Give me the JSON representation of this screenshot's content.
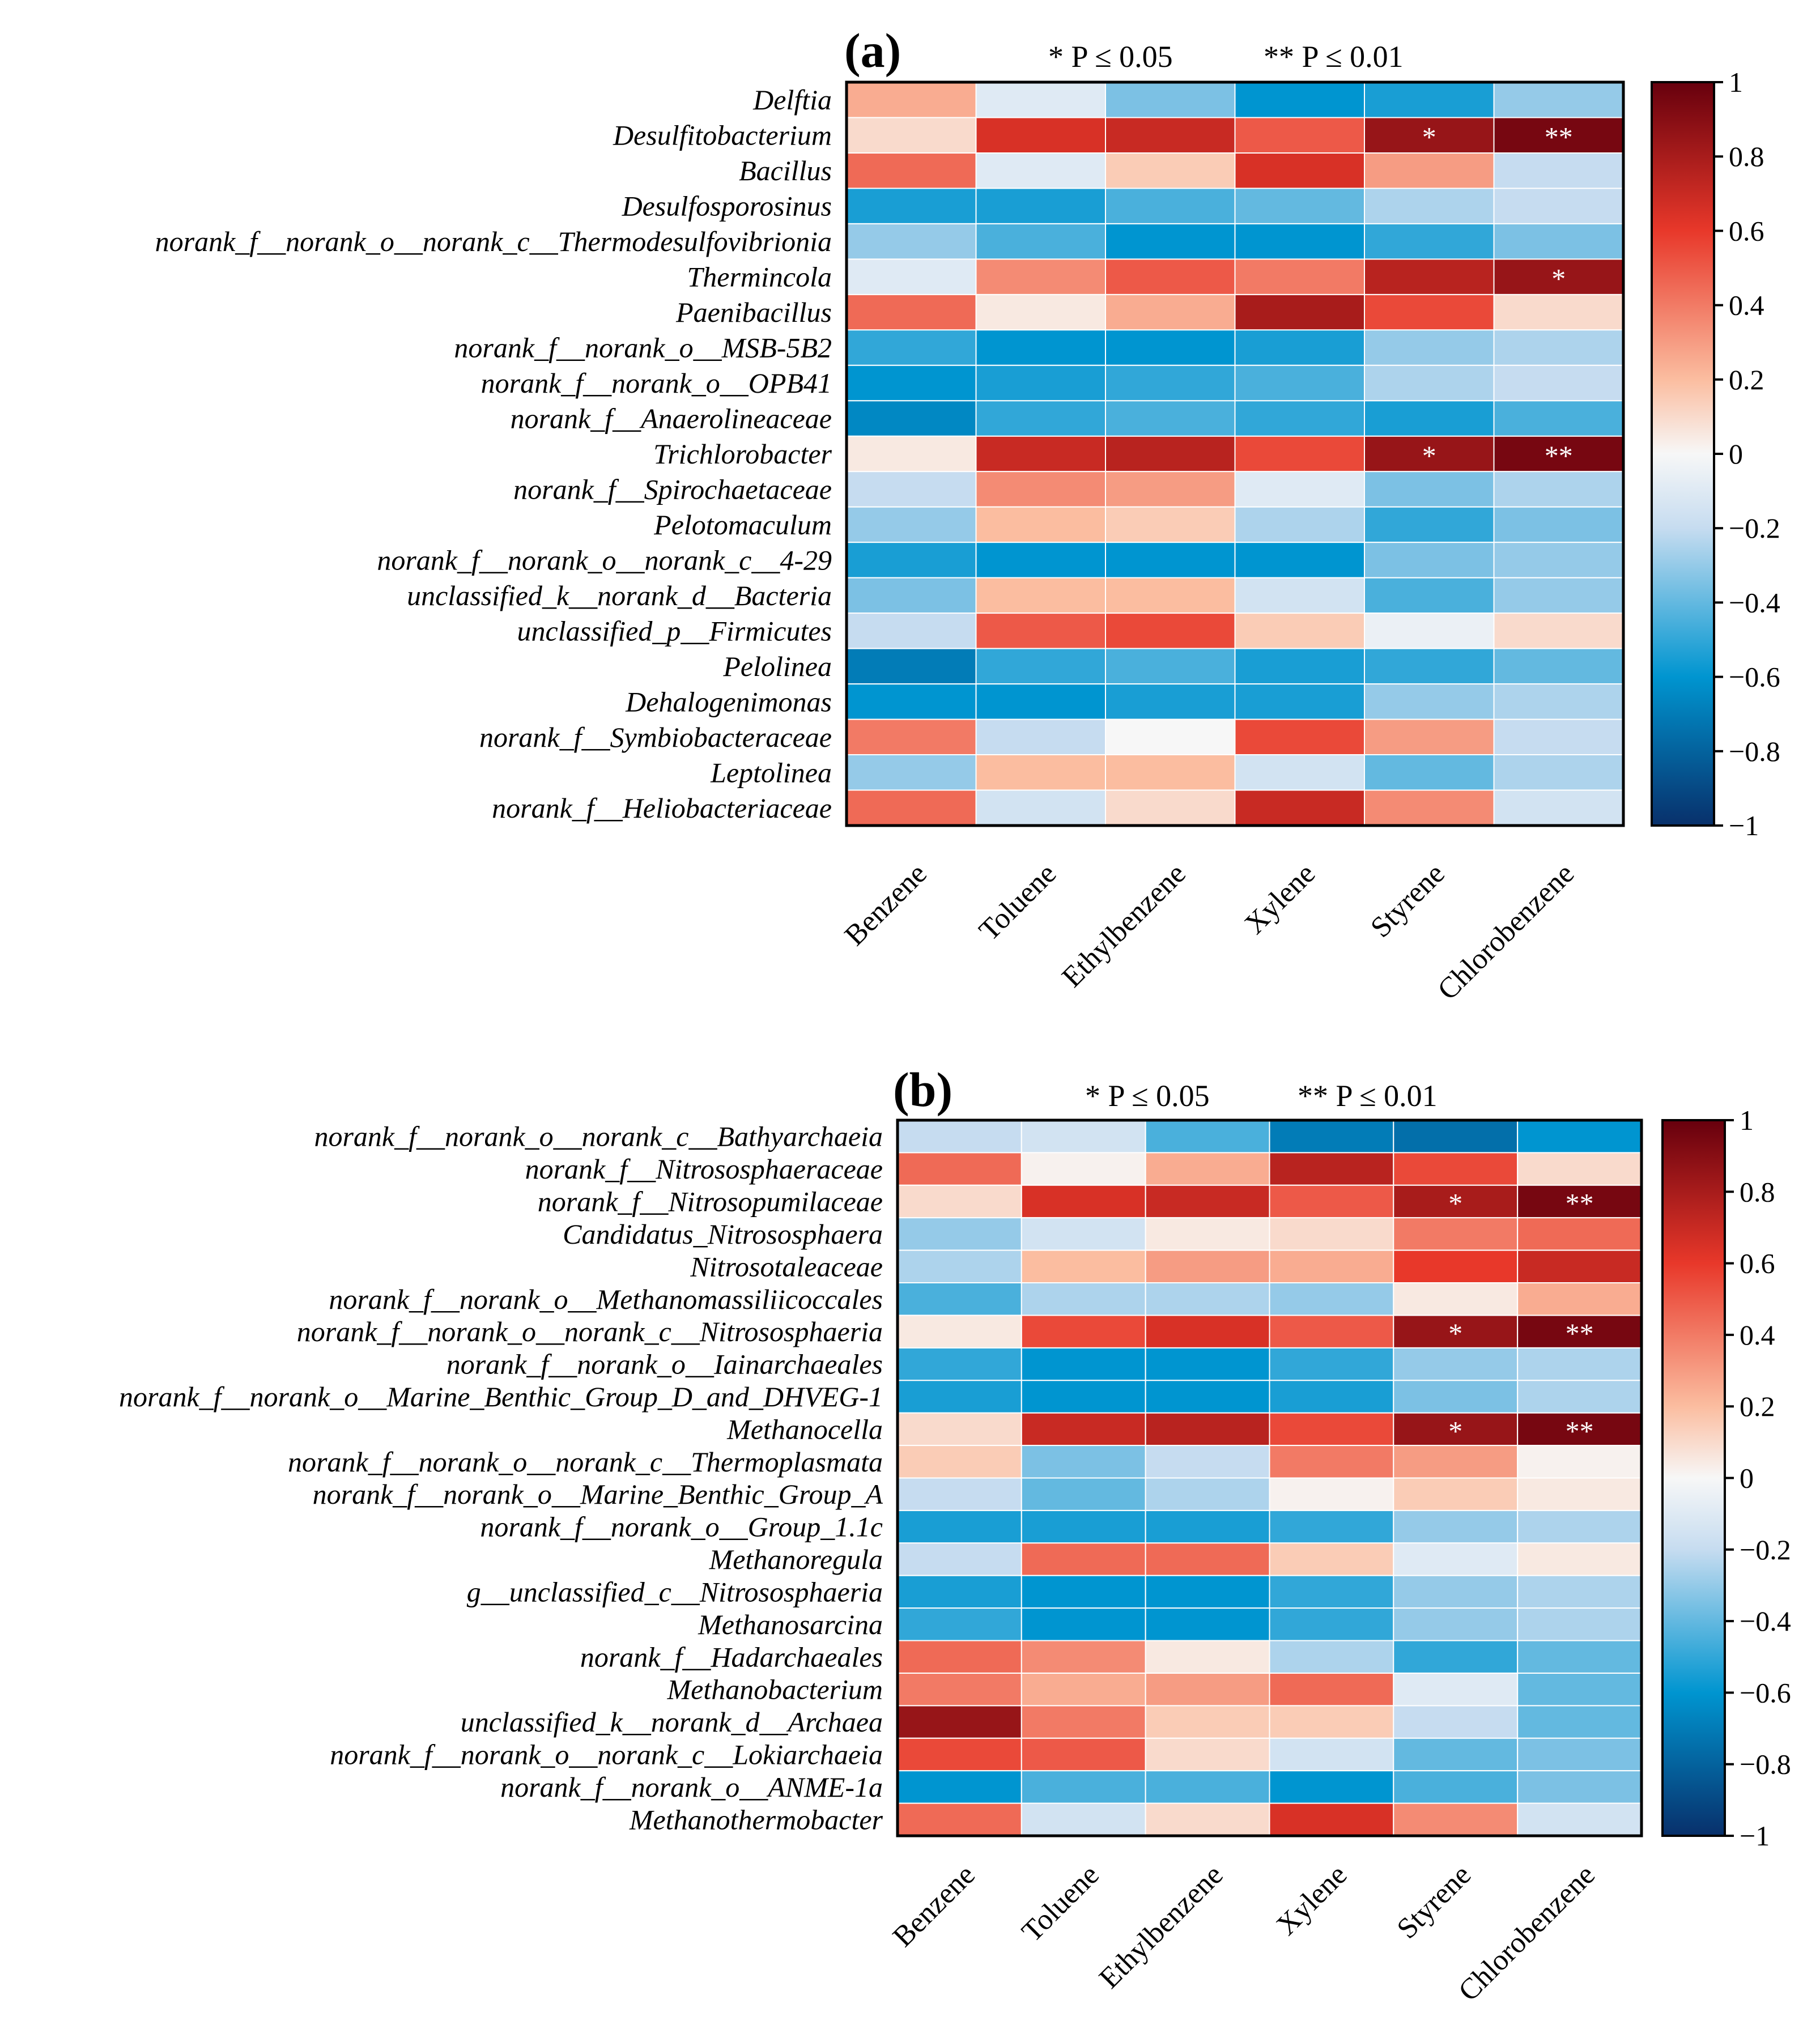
{
  "colors": {
    "scale_neg1": "#08306b",
    "scale_neg06": "#0095d0",
    "scale_neg02": "#c6dcf0",
    "scale_0": "#f7f7f7",
    "scale_pos02": "#fbbda0",
    "scale_pos06": "#e8382a",
    "scale_pos1": "#67000d"
  },
  "chart_data": [
    {
      "type": "heatmap",
      "panel_label": "(a)",
      "significance_legend": [
        "* P ≤ 0.05",
        "** P ≤ 0.01"
      ],
      "columns": [
        "Benzene",
        "Toluene",
        "Ethylbenzene",
        "Xylene",
        "Styrene",
        "Chlorobenzene"
      ],
      "rows": [
        "Delftia",
        "Desulfitobacterium",
        "Bacillus",
        "Desulfosporosinus",
        "norank_f__norank_o__norank_c__Thermodesulfovibrionia",
        "Thermincola",
        "Paenibacillus",
        "norank_f__norank_o__MSB-5B2",
        "norank_f__norank_o__OPB41",
        "norank_f__Anaerolineaceae",
        "Trichlorobacter",
        "norank_f__Spirochaetaceae",
        "Pelotomaculum",
        "norank_f__norank_o__norank_c__4-29",
        "unclassified_k__norank_d__Bacteria",
        "unclassified_p__Firmicutes",
        "Pelolinea",
        "Dehalogenimonas",
        "norank_f__Symbiobacteraceae",
        "Leptolinea",
        "norank_f__Heliobacteriaceae"
      ],
      "values": [
        [
          0.25,
          -0.1,
          -0.35,
          -0.6,
          -0.55,
          -0.3
        ],
        [
          0.1,
          0.65,
          0.7,
          0.5,
          0.85,
          0.95
        ],
        [
          0.45,
          -0.1,
          0.15,
          0.65,
          0.3,
          -0.2
        ],
        [
          -0.55,
          -0.55,
          -0.45,
          -0.4,
          -0.25,
          -0.2
        ],
        [
          -0.3,
          -0.45,
          -0.6,
          -0.6,
          -0.5,
          -0.35
        ],
        [
          -0.1,
          0.35,
          0.5,
          0.4,
          0.75,
          0.85
        ],
        [
          0.45,
          0.05,
          0.25,
          0.8,
          0.55,
          0.1
        ],
        [
          -0.5,
          -0.6,
          -0.6,
          -0.55,
          -0.3,
          -0.25
        ],
        [
          -0.6,
          -0.55,
          -0.5,
          -0.45,
          -0.25,
          -0.2
        ],
        [
          -0.65,
          -0.5,
          -0.45,
          -0.5,
          -0.55,
          -0.45
        ],
        [
          0.05,
          0.7,
          0.75,
          0.55,
          0.85,
          0.95
        ],
        [
          -0.2,
          0.35,
          0.3,
          -0.1,
          -0.35,
          -0.25
        ],
        [
          -0.3,
          0.2,
          0.15,
          -0.25,
          -0.5,
          -0.35
        ],
        [
          -0.55,
          -0.6,
          -0.6,
          -0.6,
          -0.35,
          -0.3
        ],
        [
          -0.35,
          0.2,
          0.2,
          -0.15,
          -0.45,
          -0.3
        ],
        [
          -0.2,
          0.5,
          0.55,
          0.15,
          -0.05,
          0.1
        ],
        [
          -0.7,
          -0.5,
          -0.45,
          -0.55,
          -0.5,
          -0.4
        ],
        [
          -0.6,
          -0.6,
          -0.55,
          -0.55,
          -0.3,
          -0.25
        ],
        [
          0.4,
          -0.2,
          0.0,
          0.55,
          0.3,
          -0.2
        ],
        [
          -0.3,
          0.2,
          0.2,
          -0.15,
          -0.4,
          -0.25
        ],
        [
          0.45,
          -0.15,
          0.1,
          0.7,
          0.35,
          -0.15
        ]
      ],
      "significance": [
        [
          "",
          "",
          "",
          "",
          "",
          ""
        ],
        [
          "",
          "",
          "",
          "",
          "*",
          "**"
        ],
        [
          "",
          "",
          "",
          "",
          "",
          ""
        ],
        [
          "",
          "",
          "",
          "",
          "",
          ""
        ],
        [
          "",
          "",
          "",
          "",
          "",
          ""
        ],
        [
          "",
          "",
          "",
          "",
          "",
          "*"
        ],
        [
          "",
          "",
          "",
          "",
          "",
          ""
        ],
        [
          "",
          "",
          "",
          "",
          "",
          ""
        ],
        [
          "",
          "",
          "",
          "",
          "",
          ""
        ],
        [
          "",
          "",
          "",
          "",
          "",
          ""
        ],
        [
          "",
          "",
          "",
          "",
          "*",
          "**"
        ],
        [
          "",
          "",
          "",
          "",
          "",
          ""
        ],
        [
          "",
          "",
          "",
          "",
          "",
          ""
        ],
        [
          "",
          "",
          "",
          "",
          "",
          ""
        ],
        [
          "",
          "",
          "",
          "",
          "",
          ""
        ],
        [
          "",
          "",
          "",
          "",
          "",
          ""
        ],
        [
          "",
          "",
          "",
          "",
          "",
          ""
        ],
        [
          "",
          "",
          "",
          "",
          "",
          ""
        ],
        [
          "",
          "",
          "",
          "",
          "",
          ""
        ],
        [
          "",
          "",
          "",
          "",
          "",
          ""
        ],
        [
          "",
          "",
          "",
          "",
          "",
          ""
        ]
      ],
      "colorbar_ticks": [
        "1",
        "0.8",
        "0.6",
        "0.4",
        "0.2",
        "0",
        "−0.2",
        "−0.4",
        "−0.6",
        "−0.8",
        "−1"
      ],
      "vlim": [
        -1,
        1
      ]
    },
    {
      "type": "heatmap",
      "panel_label": "(b)",
      "significance_legend": [
        "* P ≤ 0.05",
        "** P ≤ 0.01"
      ],
      "columns": [
        "Benzene",
        "Toluene",
        "Ethylbenzene",
        "Xylene",
        "Styrene",
        "Chlorobenzene"
      ],
      "rows": [
        "norank_f__norank_o__norank_c__Bathyarchaeia",
        "norank_f__Nitrososphaeraceae",
        "norank_f__Nitrosopumilaceae",
        "Candidatus_Nitrososphaera",
        "Nitrosotaleaceae",
        "norank_f__norank_o__Methanomassiliicoccales",
        "norank_f__norank_o__norank_c__Nitrososphaeria",
        "norank_f__norank_o__Iainarchaeales",
        "norank_f__norank_o__Marine_Benthic_Group_D_and_DHVEG-1",
        "Methanocella",
        "norank_f__norank_o__norank_c__Thermoplasmata",
        "norank_f__norank_o__Marine_Benthic_Group_A",
        "norank_f__norank_o__Group_1.1c",
        "Methanoregula",
        "g__unclassified_c__Nitrososphaeria",
        "Methanosarcina",
        "norank_f__Hadarchaeales",
        "Methanobacterium",
        "unclassified_k__norank_d__Archaea",
        "norank_f__norank_o__norank_c__Lokiarchaeia",
        "norank_f__norank_o__ANME-1a",
        "Methanothermobacter"
      ],
      "values": [
        [
          -0.2,
          -0.15,
          -0.45,
          -0.7,
          -0.75,
          -0.6
        ],
        [
          0.45,
          0.02,
          0.25,
          0.75,
          0.55,
          0.1
        ],
        [
          0.1,
          0.65,
          0.7,
          0.5,
          0.8,
          0.95
        ],
        [
          -0.3,
          -0.15,
          0.05,
          0.1,
          0.4,
          0.45
        ],
        [
          -0.25,
          0.2,
          0.3,
          0.25,
          0.6,
          0.7
        ],
        [
          -0.45,
          -0.25,
          -0.25,
          -0.3,
          0.05,
          0.25
        ],
        [
          0.05,
          0.55,
          0.65,
          0.5,
          0.85,
          0.95
        ],
        [
          -0.5,
          -0.6,
          -0.6,
          -0.5,
          -0.3,
          -0.25
        ],
        [
          -0.55,
          -0.6,
          -0.6,
          -0.55,
          -0.35,
          -0.25
        ],
        [
          0.1,
          0.7,
          0.75,
          0.55,
          0.85,
          0.95
        ],
        [
          0.15,
          -0.35,
          -0.2,
          0.4,
          0.3,
          0.02
        ],
        [
          -0.2,
          -0.4,
          -0.25,
          0.02,
          0.15,
          0.05
        ],
        [
          -0.55,
          -0.55,
          -0.55,
          -0.5,
          -0.3,
          -0.25
        ],
        [
          -0.2,
          0.45,
          0.45,
          0.15,
          -0.1,
          0.05
        ],
        [
          -0.55,
          -0.6,
          -0.6,
          -0.5,
          -0.3,
          -0.25
        ],
        [
          -0.5,
          -0.6,
          -0.6,
          -0.5,
          -0.3,
          -0.25
        ],
        [
          0.45,
          0.35,
          0.05,
          -0.25,
          -0.5,
          -0.4
        ],
        [
          0.4,
          0.25,
          0.3,
          0.45,
          -0.1,
          -0.4
        ],
        [
          0.85,
          0.4,
          0.15,
          0.15,
          -0.2,
          -0.4
        ],
        [
          0.55,
          0.5,
          0.1,
          -0.15,
          -0.4,
          -0.35
        ],
        [
          -0.6,
          -0.45,
          -0.45,
          -0.6,
          -0.45,
          -0.35
        ],
        [
          0.45,
          -0.15,
          0.1,
          0.65,
          0.35,
          -0.15
        ]
      ],
      "significance": [
        [
          "",
          "",
          "",
          "",
          "",
          ""
        ],
        [
          "",
          "",
          "",
          "",
          "",
          ""
        ],
        [
          "",
          "",
          "",
          "",
          "*",
          "**"
        ],
        [
          "",
          "",
          "",
          "",
          "",
          ""
        ],
        [
          "",
          "",
          "",
          "",
          "",
          ""
        ],
        [
          "",
          "",
          "",
          "",
          "",
          ""
        ],
        [
          "",
          "",
          "",
          "",
          "*",
          "**"
        ],
        [
          "",
          "",
          "",
          "",
          "",
          ""
        ],
        [
          "",
          "",
          "",
          "",
          "",
          ""
        ],
        [
          "",
          "",
          "",
          "",
          "*",
          "**"
        ],
        [
          "",
          "",
          "",
          "",
          "",
          ""
        ],
        [
          "",
          "",
          "",
          "",
          "",
          ""
        ],
        [
          "",
          "",
          "",
          "",
          "",
          ""
        ],
        [
          "",
          "",
          "",
          "",
          "",
          ""
        ],
        [
          "",
          "",
          "",
          "",
          "",
          ""
        ],
        [
          "",
          "",
          "",
          "",
          "",
          ""
        ],
        [
          "",
          "",
          "",
          "",
          "",
          ""
        ],
        [
          "",
          "",
          "",
          "",
          "",
          ""
        ],
        [
          "",
          "",
          "",
          "",
          "",
          ""
        ],
        [
          "",
          "",
          "",
          "",
          "",
          ""
        ],
        [
          "",
          "",
          "",
          "",
          "",
          ""
        ],
        [
          "",
          "",
          "",
          "",
          "",
          ""
        ]
      ],
      "colorbar_ticks": [
        "1",
        "0.8",
        "0.6",
        "0.4",
        "0.2",
        "0",
        "−0.2",
        "−0.4",
        "−0.6",
        "−0.8",
        "−1"
      ],
      "vlim": [
        -1,
        1
      ]
    }
  ]
}
